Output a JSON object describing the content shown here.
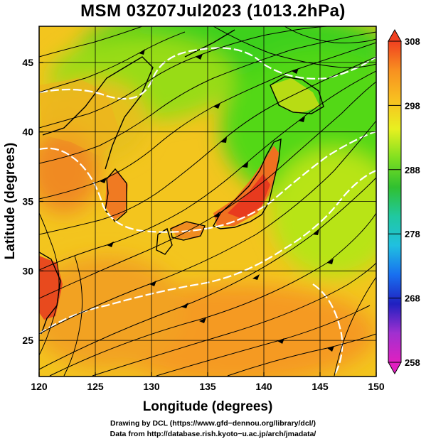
{
  "title": "MSM 03Z07Jul2023 (1013.2hPa)",
  "chart_data": {
    "type": "heatmap",
    "title": "MSM 03Z07Jul2023 (1013.2hPa)",
    "xlabel": "Longitude (degrees)",
    "ylabel": "Latitude  (degrees)",
    "xlim": [
      120,
      150
    ],
    "ylim": [
      22.4,
      47.6
    ],
    "x_ticks": [
      120,
      125,
      130,
      135,
      140,
      145,
      150
    ],
    "y_ticks": [
      25,
      30,
      35,
      40,
      45
    ],
    "grid": true,
    "colorbar": {
      "min": 258,
      "max": 308,
      "ticks": [
        258,
        268,
        278,
        288,
        298,
        308
      ],
      "placement": "right",
      "colors": [
        "#e020c0",
        "#a030d0",
        "#2020c0",
        "#1870f0",
        "#20c0e0",
        "#20c8a0",
        "#30c030",
        "#80e020",
        "#e8f020",
        "#f8c020",
        "#f89020",
        "#f04020"
      ]
    },
    "overlays": [
      "streamlines",
      "isotherm contours",
      "coastlines"
    ]
  },
  "credit": {
    "line1": "Drawing by DCL (https://www.gfd−dennou.org/library/dcl/)",
    "line2": "Data from http://database.rish.kyoto−u.ac.jp/arch/jmadata/"
  }
}
